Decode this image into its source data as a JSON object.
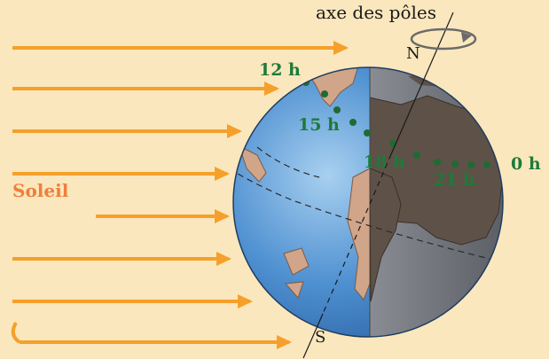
{
  "labels": {
    "axis_title": "axe des pôles",
    "north": "N",
    "south": "S",
    "sun": "Soleil"
  },
  "hours": [
    "12 h",
    "15 h",
    "18 h",
    "21 h",
    "0 h"
  ],
  "colors": {
    "background": "#fbe7bd",
    "sun_arrow": "#f5a02a",
    "ocean_day": "#4d8fd0",
    "ocean_night": "#6d6f78",
    "land_day": "#d1a589",
    "land_night": "#5e5147",
    "track_dot": "#1e6b34",
    "hour_label": "#1e7a3a",
    "sun_label": "#ef7f3a"
  },
  "icons": [
    "sun-ray-arrow",
    "rotation-arrow-icon"
  ]
}
